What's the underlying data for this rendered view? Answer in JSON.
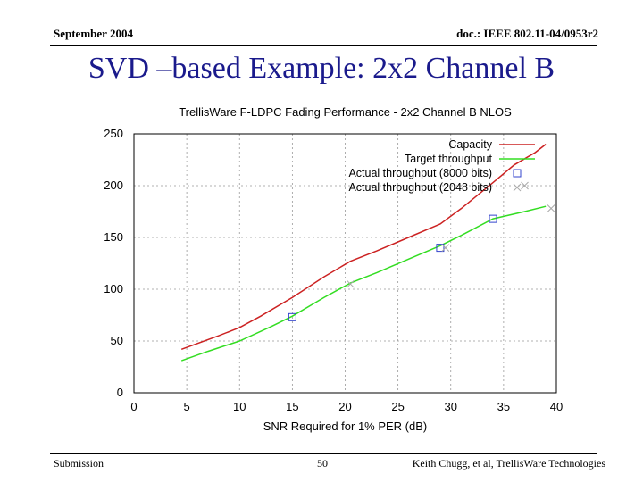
{
  "header": {
    "date": "September 2004",
    "doc": "doc.: IEEE 802.11-04/0953r2"
  },
  "slide": {
    "title": "SVD –based Example: 2x2 Channel B"
  },
  "footer": {
    "left": "Submission",
    "page": "50",
    "right": "Keith Chugg, et al, TrellisWare Technologies"
  },
  "colors": {
    "capacity": "#cc2222",
    "target": "#33dd22",
    "actual_8000": "#3344cc",
    "actual_2048": "#aaaaaa",
    "title_text": "#1a1a8c"
  },
  "chart_data": {
    "type": "line",
    "title": "TrellisWare F-LDPC Fading Performance - 2x2 Channel B NLOS",
    "xlabel": "SNR Required for 1% PER (dB)",
    "ylabel": "",
    "xlim": [
      0,
      40
    ],
    "ylim": [
      0,
      250
    ],
    "xticks": [
      0,
      5,
      10,
      15,
      20,
      25,
      30,
      35,
      40
    ],
    "yticks": [
      0,
      50,
      100,
      150,
      200,
      250
    ],
    "grid": true,
    "legend": "top-right",
    "series": [
      {
        "name": "Capacity",
        "style": "line",
        "x": [
          4.5,
          8,
          10,
          12,
          15,
          18,
          20.5,
          23,
          26,
          29,
          31,
          34,
          36,
          38,
          39
        ],
        "y": [
          42,
          55,
          63,
          74,
          92,
          112,
          127,
          137,
          150,
          163,
          178,
          203,
          220,
          232,
          240
        ]
      },
      {
        "name": "Target throughput",
        "style": "line",
        "x": [
          4.5,
          7,
          10,
          13,
          15,
          18,
          20.5,
          23,
          26,
          29,
          31,
          34,
          37,
          39
        ],
        "y": [
          31,
          40,
          50,
          64,
          74,
          92,
          106,
          116,
          129,
          142,
          152,
          168,
          175,
          180
        ]
      },
      {
        "name": "Actual throughput (8000 bits)",
        "style": "markers",
        "x": [
          15,
          29,
          34
        ],
        "y": [
          73,
          140,
          168
        ]
      },
      {
        "name": "Actual throughput (2048 bits)",
        "style": "markers",
        "x": [
          20.5,
          29.5,
          37,
          39.5
        ],
        "y": [
          105,
          140,
          200,
          178
        ]
      }
    ]
  }
}
